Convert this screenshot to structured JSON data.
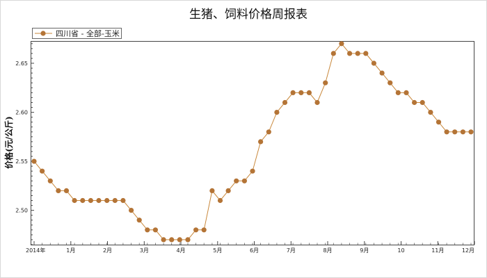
{
  "chart_data": {
    "type": "line",
    "title": "生猪、饲料价格周报表",
    "xlabel": "",
    "ylabel": "价格(元/公斤)",
    "legend_position": "top-left",
    "grid": false,
    "ylim": [
      2.465,
      2.672
    ],
    "y_ticks": [
      2.5,
      2.55,
      2.6,
      2.65
    ],
    "y_tick_labels": [
      "2.50",
      "2.55",
      "2.60",
      "2.65"
    ],
    "x_tick_labels": [
      "2014年",
      "1月",
      "2月",
      "3月",
      "4月",
      "5月",
      "6月",
      "7月",
      "8月",
      "9月",
      "10",
      "11月",
      "12月"
    ],
    "series": [
      {
        "name": "四川省 - 全部-玉米",
        "color": "#c8873a",
        "marker_color": "#b47436",
        "values": [
          2.55,
          2.54,
          2.53,
          2.52,
          2.52,
          2.51,
          2.51,
          2.51,
          2.51,
          2.51,
          2.51,
          2.51,
          2.5,
          2.49,
          2.48,
          2.48,
          2.47,
          2.47,
          2.47,
          2.47,
          2.48,
          2.48,
          2.52,
          2.51,
          2.52,
          2.53,
          2.53,
          2.54,
          2.57,
          2.58,
          2.6,
          2.61,
          2.62,
          2.62,
          2.62,
          2.61,
          2.63,
          2.66,
          2.67,
          2.66,
          2.66,
          2.66,
          2.65,
          2.64,
          2.63,
          2.62,
          2.62,
          2.61,
          2.61,
          2.6,
          2.59,
          2.58,
          2.58,
          2.58,
          2.58
        ]
      }
    ]
  }
}
